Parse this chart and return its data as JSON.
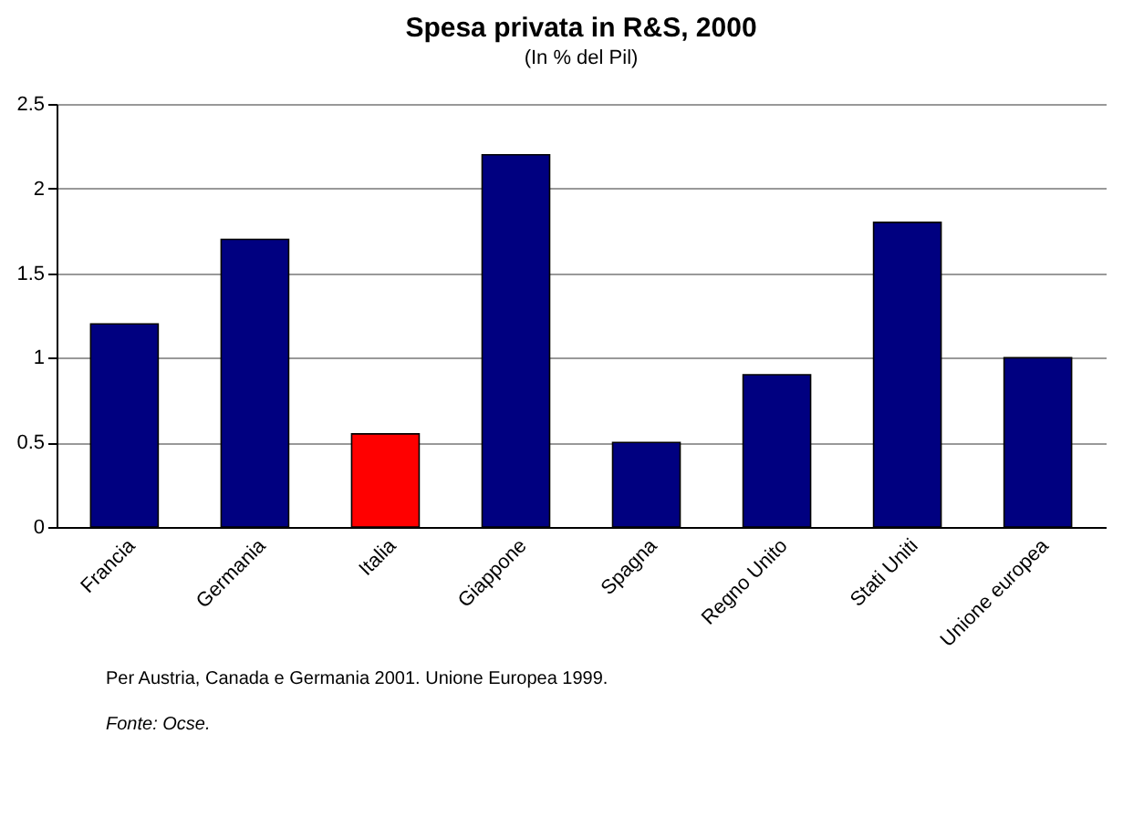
{
  "chart_data": {
    "type": "bar",
    "title": "Spesa privata in R&S, 2000",
    "subtitle": "(In % del Pil)",
    "categories": [
      "Francia",
      "Germania",
      "Italia",
      "Giappone",
      "Spagna",
      "Regno Unito",
      "Stati Uniti",
      "Unione europea"
    ],
    "values": [
      1.2,
      1.7,
      0.55,
      2.2,
      0.5,
      0.9,
      1.8,
      1.0
    ],
    "colors": [
      "#000080",
      "#000080",
      "#ff0000",
      "#000080",
      "#000080",
      "#000080",
      "#000080",
      "#000080"
    ],
    "ylim": [
      0,
      2.5
    ],
    "yticks": [
      0,
      0.5,
      1,
      1.5,
      2,
      2.5
    ],
    "grid": "y",
    "annotations": [
      "Per Austria, Canada e Germania 2001. Unione Europea 1999.",
      "Fonte: Ocse."
    ]
  }
}
